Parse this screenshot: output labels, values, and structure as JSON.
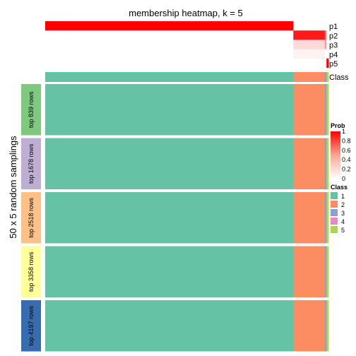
{
  "chart_data": {
    "type": "heatmap",
    "title": "membership heatmap, k = 5",
    "y_axis_label": "50 x 5 random samplings",
    "probability_tracks": {
      "labels": [
        "p1",
        "p2",
        "p3",
        "p4",
        "p5"
      ],
      "column_segments_by_class": {
        "1": {
          "p1": 1.0,
          "p2": 0.0,
          "p3": 0.0,
          "p4": 0.0,
          "p5": 0.0
        },
        "2": {
          "p1": 0.0,
          "p2": 0.9,
          "p3": 0.15,
          "p4": 0.05,
          "p5": 0.0
        },
        "3": {
          "p1": 0.0,
          "p2": 0.6,
          "p3": 0.4,
          "p4": 0.0,
          "p5": 0.0
        },
        "5": {
          "p1": 0.0,
          "p2": 0.0,
          "p3": 0.0,
          "p4": 0.0,
          "p5": 1.0
        }
      }
    },
    "class_track_label": "Class",
    "column_class_fractions": [
      {
        "class": "1",
        "fraction": 0.876
      },
      {
        "class": "2",
        "fraction": 0.111
      },
      {
        "class": "3",
        "fraction": 0.006
      },
      {
        "class": "5",
        "fraction": 0.007
      }
    ],
    "row_groups": [
      {
        "label": "top 839 rows",
        "color": "#7FC97F"
      },
      {
        "label": "top 1678 rows",
        "color": "#BEAED4"
      },
      {
        "label": "top 2518 rows",
        "color": "#FDC086"
      },
      {
        "label": "top 3358 rows",
        "color": "#FFFF99"
      },
      {
        "label": "top 4197 rows",
        "color": "#386CB0"
      }
    ],
    "legend_prob": {
      "title": "Prob",
      "ticks": [
        "1",
        "0.8",
        "0.6",
        "0.4",
        "0.2",
        "0"
      ],
      "colors": [
        "#FF0000",
        "#FFFFFF"
      ]
    },
    "legend_class": {
      "title": "Class",
      "items": [
        {
          "label": "1",
          "color": "#66C2A5"
        },
        {
          "label": "2",
          "color": "#FC8D62"
        },
        {
          "label": "3",
          "color": "#8DA0CB"
        },
        {
          "label": "4",
          "color": "#E78AC3"
        },
        {
          "label": "5",
          "color": "#A6D854"
        }
      ]
    }
  }
}
